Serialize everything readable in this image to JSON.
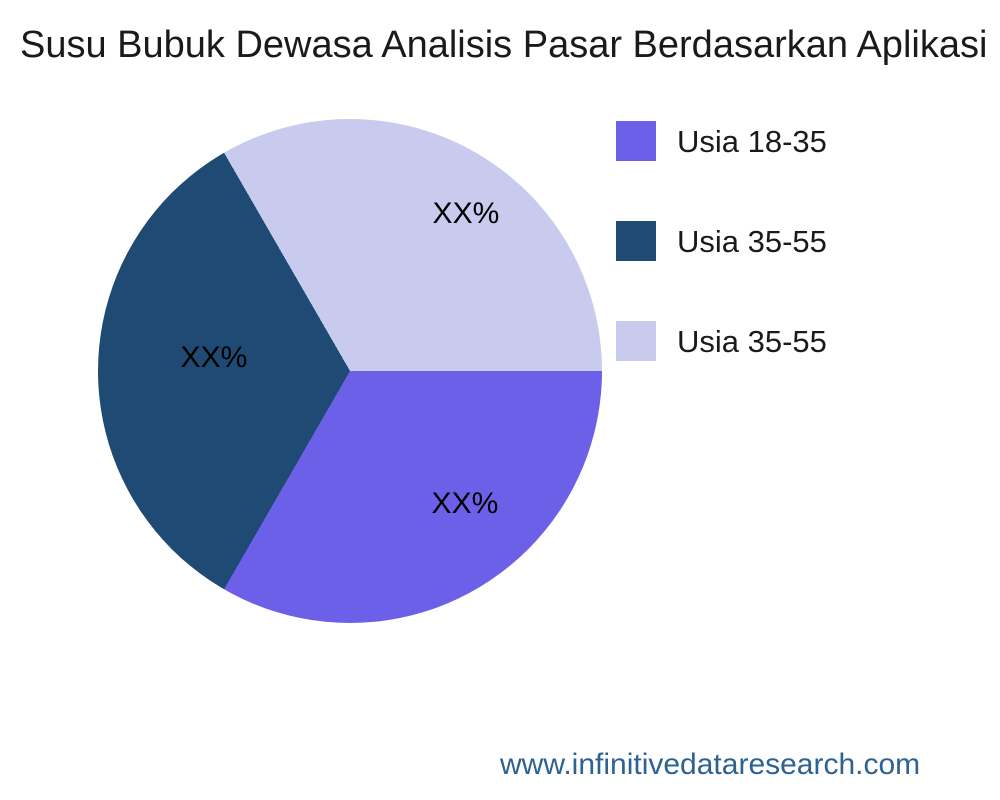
{
  "chart_data": {
    "type": "pie",
    "title": "Susu Bubuk Dewasa Analisis Pasar Berdasarkan Aplikasi",
    "slices": [
      {
        "legend_label": "Usia 18-35",
        "value": 33.33,
        "value_label": "XX%",
        "color": "#6C60E8"
      },
      {
        "legend_label": "Usia 35-55",
        "value": 33.34,
        "value_label": "XX%",
        "color": "#1E4A73"
      },
      {
        "legend_label": "Usia 35-55",
        "value": 33.33,
        "value_label": "XX%",
        "color": "#C8CBEE"
      }
    ],
    "start_angle": "east",
    "direction": "clockwise",
    "legend_position": "right",
    "label_text_color": "#000000"
  },
  "footer": {
    "url": "www.infinitivedataresearch.com",
    "color": "#2D6291"
  }
}
